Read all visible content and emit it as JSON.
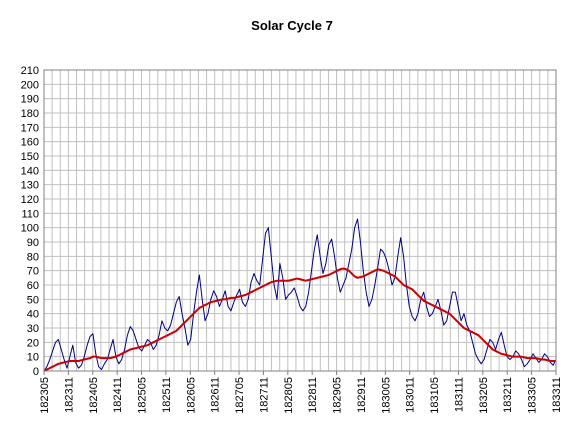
{
  "chart_data": {
    "type": "line",
    "title": "Solar Cycle 7",
    "xlabel": "",
    "ylabel": "",
    "ylim": [
      0,
      210
    ],
    "ytick_step": 10,
    "grid": true,
    "legend": "none",
    "x_tick_labels": [
      "182305",
      "182311",
      "182405",
      "182411",
      "182505",
      "182511",
      "182605",
      "182611",
      "182705",
      "182711",
      "182805",
      "182811",
      "182905",
      "182911",
      "183005",
      "183011",
      "183105",
      "183111",
      "183205",
      "183211",
      "183305",
      "183311"
    ],
    "series": [
      {
        "color": "#000080",
        "values": [
          0,
          3,
          8,
          14,
          20,
          22,
          15,
          8,
          2,
          10,
          18,
          6,
          2,
          4,
          10,
          18,
          24,
          26,
          12,
          3,
          1,
          5,
          8,
          15,
          22,
          10,
          5,
          8,
          15,
          25,
          31,
          28,
          22,
          16,
          14,
          18,
          22,
          20,
          15,
          18,
          25,
          35,
          30,
          28,
          32,
          40,
          48,
          52,
          40,
          30,
          18,
          22,
          40,
          55,
          67,
          50,
          35,
          40,
          50,
          56,
          52,
          45,
          50,
          56,
          45,
          42,
          48,
          53,
          57,
          48,
          45,
          50,
          62,
          68,
          63,
          60,
          78,
          96,
          100,
          80,
          60,
          50,
          75,
          65,
          50,
          53,
          55,
          58,
          52,
          45,
          42,
          45,
          55,
          70,
          85,
          95,
          80,
          68,
          75,
          88,
          92,
          80,
          65,
          55,
          60,
          65,
          75,
          85,
          100,
          106,
          90,
          70,
          55,
          45,
          50,
          60,
          72,
          85,
          83,
          78,
          70,
          60,
          65,
          80,
          93,
          80,
          60,
          45,
          38,
          35,
          40,
          50,
          55,
          45,
          38,
          40,
          45,
          50,
          42,
          32,
          35,
          45,
          55,
          55,
          45,
          35,
          40,
          32,
          28,
          20,
          12,
          8,
          5,
          8,
          15,
          22,
          20,
          15,
          22,
          27,
          18,
          10,
          8,
          10,
          14,
          12,
          8,
          3,
          5,
          8,
          12,
          9,
          6,
          8,
          12,
          10,
          6,
          4,
          8
        ]
      },
      {
        "color": "#cc0000",
        "values": [
          0,
          1,
          2,
          3,
          4,
          5,
          5.5,
          6,
          6.5,
          7,
          7,
          7,
          7,
          7.5,
          8,
          8.5,
          9,
          10,
          10,
          9.5,
          9,
          9,
          9,
          9,
          9.5,
          10,
          11,
          12,
          13,
          14,
          15,
          15.5,
          16,
          16.5,
          17,
          17.5,
          18,
          19,
          20,
          21,
          22,
          23,
          24,
          25,
          26,
          27,
          28,
          30,
          32,
          34,
          36,
          38,
          40,
          42,
          44,
          45,
          46,
          47,
          48,
          48.5,
          49,
          49.5,
          50,
          50,
          50.5,
          51,
          51,
          51.5,
          52,
          52.5,
          53,
          54,
          55,
          56,
          57,
          58,
          59,
          60,
          61,
          62,
          62.5,
          63,
          63,
          63,
          63,
          63,
          63.5,
          64,
          64.5,
          64,
          63.5,
          63,
          63.5,
          64,
          64.5,
          65,
          65.5,
          66,
          66.5,
          67,
          68,
          69,
          70,
          71,
          71.5,
          71,
          70,
          68,
          66,
          65,
          65.5,
          66,
          67,
          68,
          69,
          70,
          71,
          70.5,
          70,
          69,
          68,
          67,
          66,
          64,
          62,
          60,
          59,
          58,
          57,
          55,
          53,
          51,
          49,
          48,
          47,
          46,
          45,
          44,
          43,
          42,
          41,
          40,
          38,
          36,
          34,
          32,
          30,
          29,
          28,
          27,
          26,
          25,
          23,
          21,
          19,
          17,
          15,
          14,
          13,
          12,
          11.5,
          11,
          10.5,
          10,
          10,
          10,
          10,
          9.5,
          9,
          9,
          9,
          9,
          8.5,
          8,
          8,
          7.5,
          7,
          7,
          7
        ]
      }
    ]
  }
}
